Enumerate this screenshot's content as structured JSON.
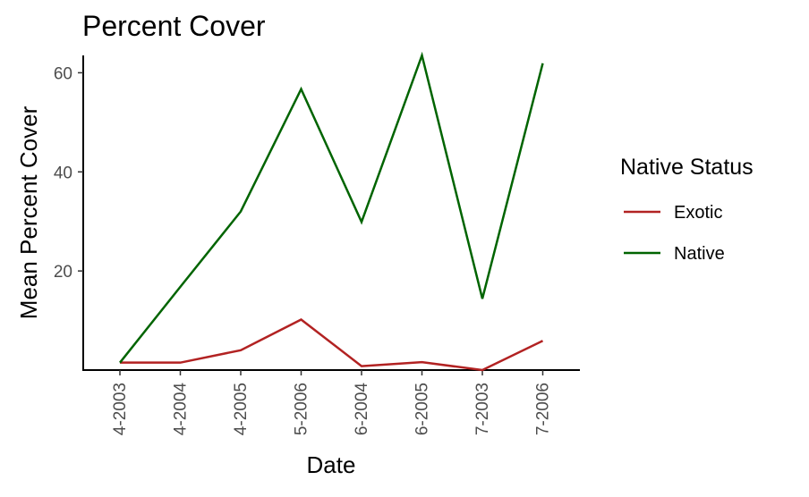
{
  "chart_data": {
    "type": "line",
    "title": "Percent Cover",
    "xlabel": "Date",
    "ylabel": "Mean Percent Cover",
    "categories": [
      "4-2003",
      "4-2004",
      "4-2005",
      "5-2006",
      "6-2004",
      "6-2005",
      "7-2003",
      "7-2006"
    ],
    "yticks": [
      20,
      40,
      60
    ],
    "ylim": [
      0,
      63.5
    ],
    "grid": false,
    "legend": {
      "title": "Native Status",
      "position": "right"
    },
    "series": [
      {
        "name": "Exotic",
        "color": "#B22222",
        "values": [
          1.5,
          1.5,
          4.0,
          10.2,
          0.8,
          1.6,
          0.0,
          5.9
        ]
      },
      {
        "name": "Native",
        "color": "#006400",
        "values": [
          1.5,
          16.8,
          32.0,
          56.7,
          29.9,
          63.5,
          14.4,
          61.9
        ]
      }
    ]
  }
}
